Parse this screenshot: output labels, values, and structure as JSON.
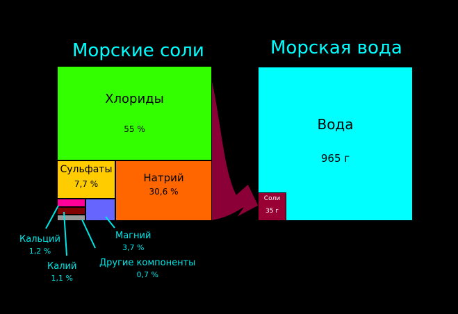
{
  "left_title": "Морские соли",
  "right_title": "Морская вода",
  "salts": {
    "chlorides": {
      "label": "Хлориды",
      "value": "55 %",
      "color": "#33ff00"
    },
    "sulfates": {
      "label": "Сульфаты",
      "value": "7,7 %",
      "color": "#ffcc00"
    },
    "sodium": {
      "label": "Натрий",
      "value": "30,6 %",
      "color": "#ff6600"
    },
    "calcium": {
      "label": "Кальций",
      "value": "1,2 %",
      "color": "#ff0099"
    },
    "potassium": {
      "label": "Калий",
      "value": "1,1 %",
      "color": "#800000"
    },
    "magnesium": {
      "label": "Магний",
      "value": "3,7 %",
      "color": "#6666ff"
    },
    "other": {
      "label": "Другие компоненты",
      "value": "0,7 %",
      "color": "#999999"
    }
  },
  "seawater": {
    "water": {
      "label": "Вода",
      "value": "965 г",
      "color": "#00ffff"
    },
    "salts": {
      "label": "Соли",
      "value": "35 г",
      "color": "#990033"
    }
  },
  "colors": {
    "background": "#000000",
    "title": "#00ffff",
    "annotation": "#00e6e6",
    "arrow": "#8b0036"
  }
}
